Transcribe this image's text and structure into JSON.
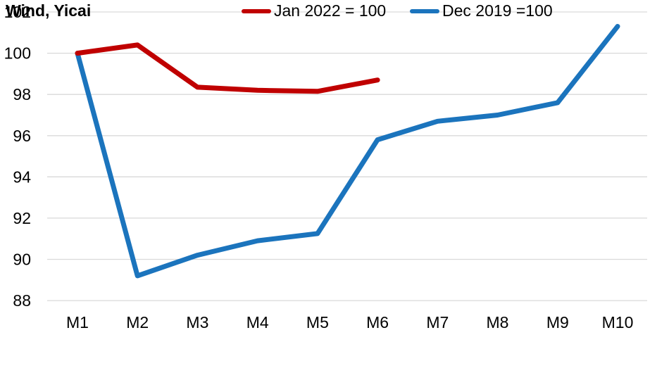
{
  "chart_data": {
    "type": "line",
    "title": "",
    "xlabel": "",
    "ylabel": "",
    "categories": [
      "M1",
      "M2",
      "M3",
      "M4",
      "M5",
      "M6",
      "M7",
      "M8",
      "M9",
      "M10"
    ],
    "series": [
      {
        "name": "Dec 2019 =100",
        "color": "#1B74BD",
        "values": [
          100,
          89.2,
          90.2,
          90.9,
          91.25,
          95.8,
          96.7,
          97.0,
          97.6,
          101.3
        ]
      },
      {
        "name": "Jan 2022 = 100",
        "color": "#C00000",
        "values": [
          100,
          100.4,
          98.35,
          98.2,
          98.15,
          98.7
        ]
      }
    ],
    "ylim": [
      88,
      102
    ],
    "y_ticks": [
      102,
      100,
      98,
      96,
      94,
      92,
      90,
      88
    ],
    "grid": "horizontal",
    "grid_color": "#D9D9D9",
    "legend_position": "bottom"
  },
  "footer": {
    "source": "Wind, Yicai"
  },
  "legend": {
    "items": [
      {
        "label": "Jan 2022 = 100",
        "color": "#C00000"
      },
      {
        "label": "Dec 2019 =100",
        "color": "#1B74BD"
      }
    ]
  },
  "colors": {
    "background": "#FFFFFF",
    "text": "#000000"
  }
}
